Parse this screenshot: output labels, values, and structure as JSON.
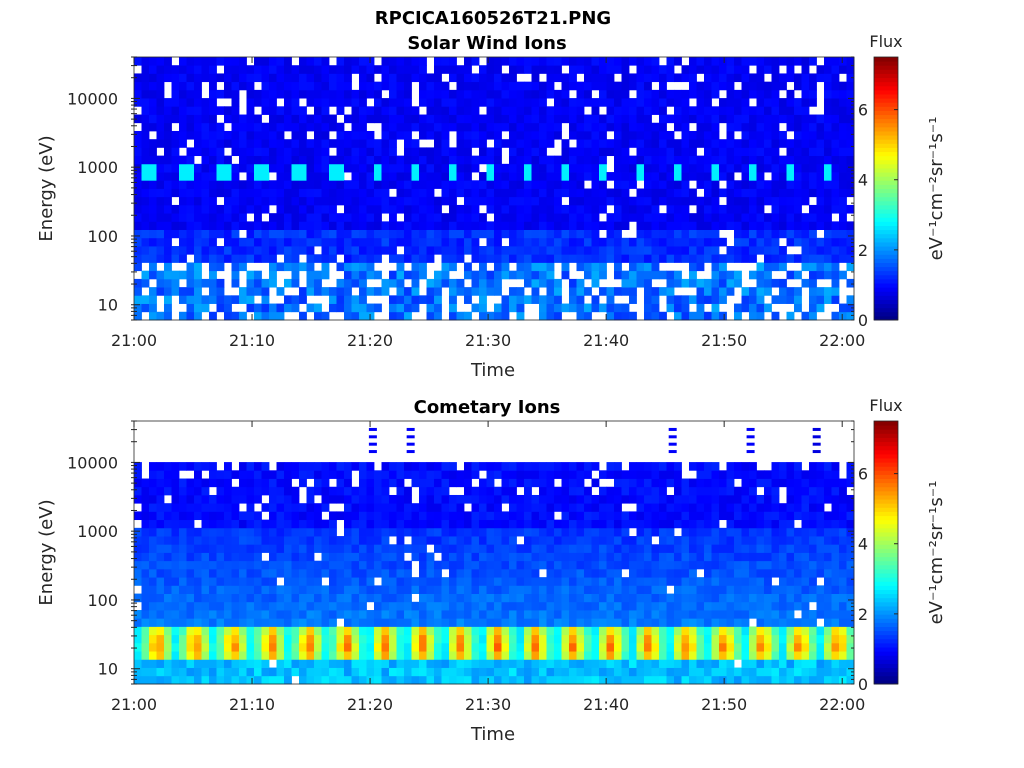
{
  "figure_title": "RPCICA160526T21.PNG",
  "chart_data": [
    {
      "type": "heatmap",
      "title": "Solar Wind Ions",
      "xlabel": "Time",
      "ylabel": "Energy (eV)",
      "x_ticks": [
        "21:00",
        "21:10",
        "21:20",
        "21:30",
        "21:40",
        "21:50",
        "22:00"
      ],
      "x_range": [
        "21:00",
        "22:01"
      ],
      "y_scale": "log",
      "y_ticks": [
        10,
        100,
        1000,
        10000
      ],
      "y_tick_labels": [
        "10",
        "100",
        "1000",
        "10000"
      ],
      "y_range": [
        6,
        40000
      ],
      "colorbar": {
        "label": "Flux",
        "unit": "eV⁻¹cm⁻²sr⁻¹s⁻¹",
        "range": [
          0,
          7.5
        ],
        "ticks": [
          "0",
          "2",
          "4",
          "6"
        ],
        "colormap": "jet"
      },
      "features": {
        "background_level": 0.7,
        "periodic_band": {
          "energy_eV": 900,
          "level": 2.7,
          "period_min": 3.2,
          "first_min": 0.5
        },
        "low_energy_level": 1.3,
        "missing_data": "white gaps"
      }
    },
    {
      "type": "heatmap",
      "title": "Cometary Ions",
      "xlabel": "Time",
      "ylabel": "Energy (eV)",
      "x_ticks": [
        "21:00",
        "21:10",
        "21:20",
        "21:30",
        "21:40",
        "21:50",
        "22:00"
      ],
      "x_range": [
        "21:00",
        "22:01"
      ],
      "y_scale": "log",
      "y_ticks": [
        10,
        100,
        1000,
        10000
      ],
      "y_tick_labels": [
        "10",
        "100",
        "1000",
        "10000"
      ],
      "y_range": [
        6,
        40000
      ],
      "colorbar": {
        "label": "Flux",
        "unit": "eV⁻¹cm⁻²sr⁻¹s⁻¹",
        "range": [
          0,
          7.5
        ],
        "ticks": [
          "0",
          "2",
          "4",
          "6"
        ],
        "colormap": "jet"
      },
      "features": {
        "upper_cutoff_eV": 10000,
        "background_level": 0.8,
        "low_energy_band": {
          "energy_eV": 22,
          "peak_level": 5.8,
          "period_min": 3.2,
          "first_min": 0.5
        },
        "missing_data": "white gaps"
      }
    }
  ]
}
